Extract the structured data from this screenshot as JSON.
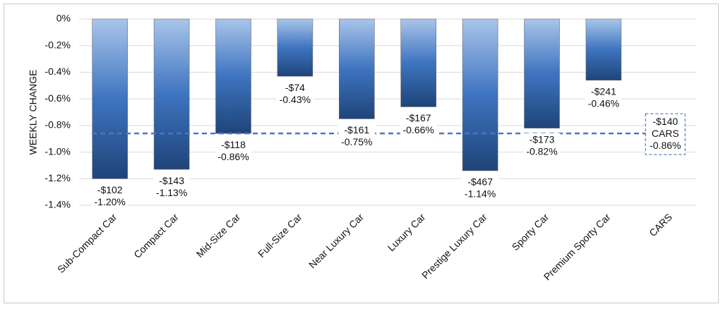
{
  "chart_data": {
    "type": "bar",
    "ylabel": "WEEKLY CHANGE",
    "categories": [
      "Sub-Compact Car",
      "Compact Car",
      "Mid-Size Car",
      "Full-Size Car",
      "Near Luxury Car",
      "Luxury Car",
      "Prestige Luxury Car",
      "Sporty Car",
      "Premium Sporty Car",
      "CARS"
    ],
    "values": [
      -1.2,
      -1.13,
      -0.86,
      -0.43,
      -0.75,
      -0.66,
      -1.14,
      -0.82,
      -0.46,
      null
    ],
    "value_labels": [
      "-1.20%",
      "-1.13%",
      "-0.86%",
      "-0.43%",
      "-0.75%",
      "-0.66%",
      "-1.14%",
      "-0.82%",
      "-0.46%",
      null
    ],
    "dollar_labels": [
      "-$102",
      "-$143",
      "-$118",
      "-$74",
      "-$161",
      "-$167",
      "-$467",
      "-$173",
      "-$241",
      null
    ],
    "gradient": [
      "#a9c5ea",
      "#3e74c0",
      "#1f4479"
    ],
    "reference": {
      "value": -0.86,
      "value_label": "-0.86%",
      "amount_label": "-$140",
      "name": "CARS",
      "color": "#4a78c0"
    },
    "ylim": [
      -1.4,
      0
    ],
    "yticks": [
      {
        "value": 0,
        "label": "0%"
      },
      {
        "value": -0.2,
        "label": "-0.2%"
      },
      {
        "value": -0.4,
        "label": "-0.4%"
      },
      {
        "value": -0.6,
        "label": "-0.6%"
      },
      {
        "value": -0.8,
        "label": "-0.8%"
      },
      {
        "value": -1.0,
        "label": "-1.0%"
      },
      {
        "value": -1.2,
        "label": "-1.2%"
      },
      {
        "value": -1.4,
        "label": "-1.4%"
      }
    ],
    "grid": true
  }
}
